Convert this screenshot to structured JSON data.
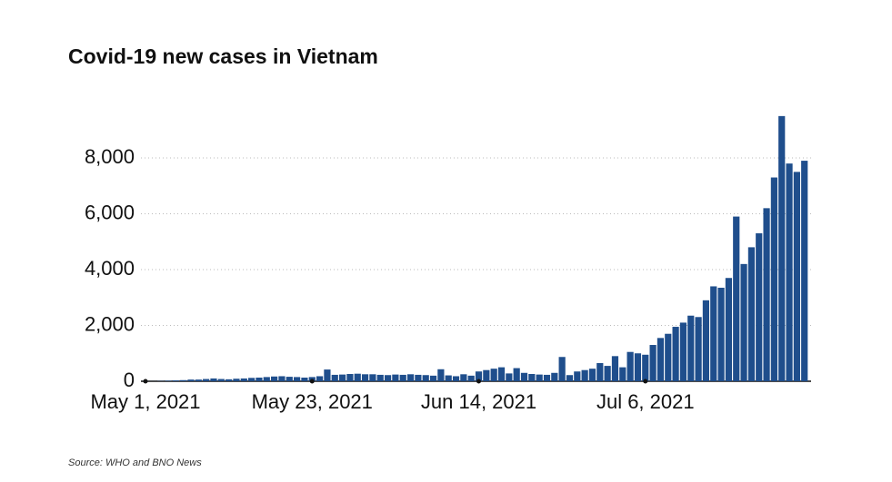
{
  "chart_data": {
    "type": "bar",
    "title": "Covid-19 new cases in Vietnam",
    "source": "Source: WHO and BNO News",
    "categories": [
      "May 1, 2021",
      null,
      null,
      null,
      null,
      null,
      null,
      null,
      null,
      null,
      null,
      null,
      null,
      null,
      null,
      null,
      null,
      null,
      null,
      null,
      null,
      null,
      "May 23, 2021",
      null,
      null,
      null,
      null,
      null,
      null,
      null,
      null,
      null,
      null,
      null,
      null,
      null,
      null,
      null,
      null,
      null,
      null,
      null,
      null,
      null,
      "Jun 14, 2021",
      null,
      null,
      null,
      null,
      null,
      null,
      null,
      null,
      null,
      null,
      null,
      null,
      null,
      null,
      null,
      null,
      null,
      null,
      null,
      null,
      null,
      "Jul 6, 2021",
      null,
      null,
      null,
      null,
      null,
      null,
      null,
      null,
      null,
      null,
      null,
      null,
      null,
      null,
      null,
      null,
      null,
      null,
      null,
      null,
      null
    ],
    "values": [
      5,
      3,
      10,
      20,
      30,
      40,
      60,
      60,
      80,
      100,
      80,
      70,
      90,
      100,
      120,
      130,
      150,
      170,
      180,
      160,
      150,
      130,
      150,
      180,
      420,
      230,
      240,
      260,
      270,
      250,
      250,
      230,
      220,
      240,
      230,
      250,
      230,
      220,
      200,
      430,
      210,
      180,
      250,
      200,
      350,
      400,
      450,
      500,
      280,
      470,
      300,
      260,
      240,
      230,
      300,
      870,
      220,
      350,
      400,
      450,
      650,
      550,
      900,
      500,
      1050,
      1000,
      950,
      1300,
      1550,
      1700,
      1950,
      2100,
      2350,
      2300,
      2900,
      3400,
      3350,
      3700,
      5900,
      4200,
      4800,
      5300,
      6200,
      7300,
      9500,
      7800,
      7500,
      7900
    ],
    "color": "#1f4e8c",
    "ylim": [
      0,
      10000
    ],
    "yticks": [
      0,
      {
        "value": 2000,
        "label": "2,000"
      },
      {
        "value": 4000,
        "label": "4,000"
      },
      {
        "value": 6000,
        "label": "6,000"
      },
      {
        "value": 8000,
        "label": "8,000"
      }
    ],
    "grid": true
  }
}
